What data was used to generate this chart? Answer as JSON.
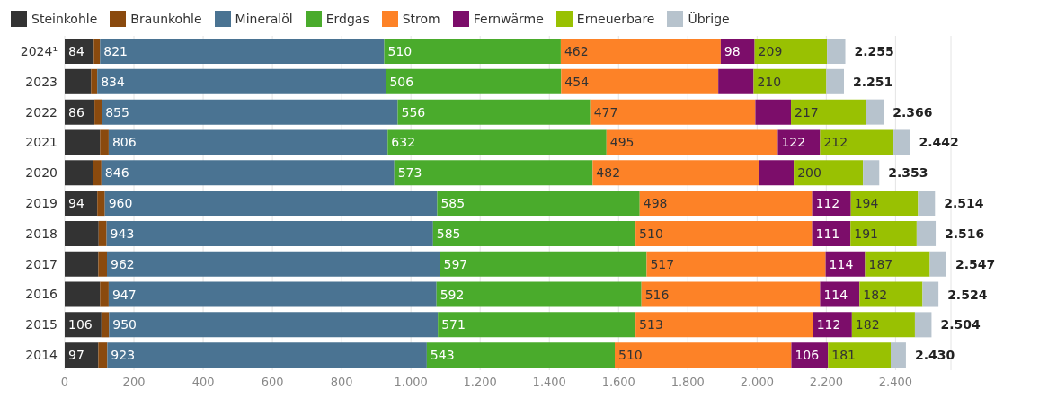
{
  "chart_data": {
    "type": "bar",
    "orientation": "horizontal",
    "stacked": true,
    "legend": "top",
    "grid": "x",
    "categories": [
      "2024¹",
      "2023",
      "2022",
      "2021",
      "2020",
      "2019",
      "2018",
      "2017",
      "2016",
      "2015",
      "2014"
    ],
    "xlim": [
      0,
      2560
    ],
    "xticks": [
      0,
      200,
      400,
      600,
      800,
      {
        "value": 1000,
        "label": "1.000"
      },
      {
        "value": 1200,
        "label": "1.200"
      },
      {
        "value": 1400,
        "label": "1.400"
      },
      {
        "value": 1600,
        "label": "1.600"
      },
      {
        "value": 1800,
        "label": "1.800"
      },
      {
        "value": 2000,
        "label": "2.000"
      },
      {
        "value": 2200,
        "label": "2.200"
      },
      {
        "value": 2400,
        "label": "2.400"
      }
    ],
    "series": [
      {
        "name": "Steinkohle",
        "color": "#333333",
        "values": [
          84,
          76,
          86,
          102,
          82,
          94,
          98,
          97,
          102,
          106,
          97
        ],
        "value_labels": [
          "84",
          null,
          "86",
          null,
          null,
          "94",
          null,
          null,
          null,
          "106",
          "97"
        ]
      },
      {
        "name": "Braunkohle",
        "color": "#8a4a0e",
        "values": [
          18,
          18,
          21,
          25,
          24,
          22,
          23,
          25,
          25,
          22,
          26
        ],
        "value_labels": [
          null,
          null,
          null,
          null,
          null,
          null,
          null,
          null,
          null,
          null,
          null
        ]
      },
      {
        "name": "Mineralöl",
        "color": "#4a7392",
        "values": [
          821,
          834,
          855,
          806,
          846,
          960,
          943,
          962,
          947,
          950,
          923
        ],
        "value_labels": [
          "821",
          "834",
          "855",
          "806",
          "846",
          "960",
          "943",
          "962",
          "947",
          "950",
          "923"
        ]
      },
      {
        "name": "Erdgas",
        "color": "#4aab2c",
        "values": [
          510,
          506,
          556,
          632,
          573,
          585,
          585,
          597,
          592,
          571,
          543
        ],
        "value_labels": [
          "510",
          "506",
          "556",
          "632",
          "573",
          "585",
          "585",
          "597",
          "592",
          "571",
          "543"
        ]
      },
      {
        "name": "Strom",
        "color": "#fd8227",
        "values": [
          462,
          454,
          477,
          495,
          482,
          498,
          510,
          517,
          516,
          513,
          510
        ],
        "value_labels": [
          "462",
          "454",
          "477",
          "495",
          "482",
          "498",
          "510",
          "517",
          "516",
          "513",
          "510"
        ]
      },
      {
        "name": "Fernwärme",
        "color": "#7c0d6a",
        "values": [
          98,
          102,
          103,
          122,
          99,
          112,
          111,
          114,
          114,
          112,
          106
        ],
        "value_labels": [
          "98",
          null,
          null,
          "122",
          null,
          "112",
          "111",
          "114",
          "114",
          "112",
          "106"
        ]
      },
      {
        "name": "Erneuerbare",
        "color": "#99c102",
        "values": [
          209,
          210,
          217,
          212,
          200,
          194,
          191,
          187,
          182,
          182,
          181
        ],
        "value_labels": [
          "209",
          "210",
          "217",
          "212",
          "200",
          "194",
          "191",
          "187",
          "182",
          "182",
          "181"
        ]
      },
      {
        "name": "Übrige",
        "color": "#b7c3cd",
        "values": [
          53,
          51,
          51,
          48,
          47,
          49,
          55,
          48,
          46,
          48,
          44
        ],
        "value_labels": [
          null,
          null,
          null,
          null,
          null,
          null,
          null,
          null,
          null,
          null,
          null
        ]
      }
    ],
    "totals": [
      "2.255",
      "2.251",
      "2.366",
      "2.442",
      "2.353",
      "2.514",
      "2.516",
      "2.547",
      "2.524",
      "2.504",
      "2.430"
    ]
  }
}
